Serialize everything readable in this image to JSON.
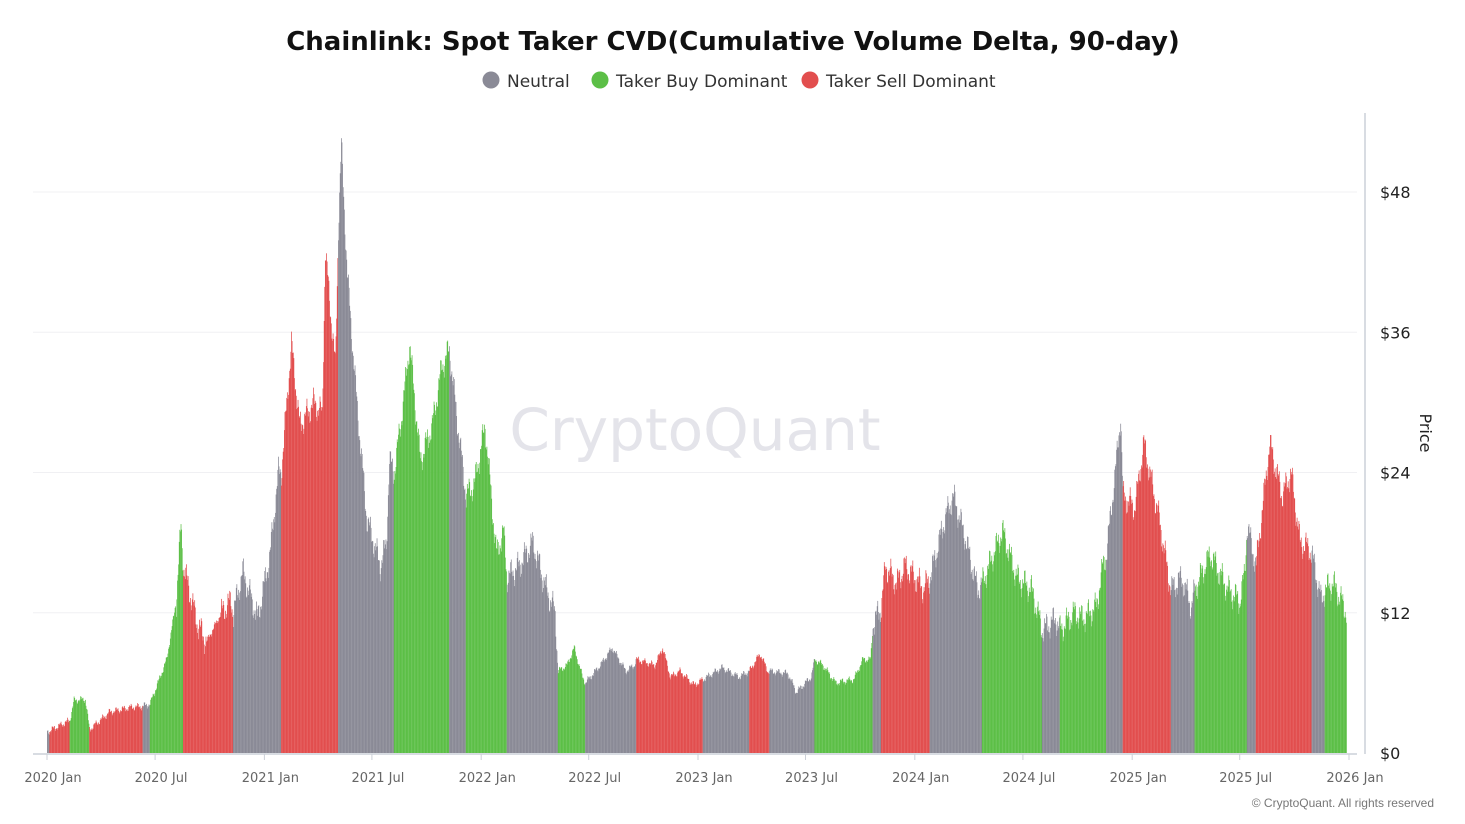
{
  "chart_data": {
    "type": "bar",
    "title": "Chainlink: Spot Taker CVD(Cumulative Volume Delta, 90-day)",
    "ylabel": "Price",
    "ylim": [
      0,
      52
    ],
    "xlim": [
      "2020-01-01",
      "2026-01-01"
    ],
    "y_ticks": [
      "$0",
      "$12",
      "$24",
      "$36",
      "$48"
    ],
    "y_tick_values": [
      0,
      12,
      24,
      36,
      48
    ],
    "x_ticks": [
      "2020 Jan",
      "2020 Jul",
      "2021 Jan",
      "2021 Jul",
      "2022 Jan",
      "2022 Jul",
      "2023 Jan",
      "2023 Jul",
      "2024 Jan",
      "2024 Jul",
      "2025 Jan",
      "2025 Jul",
      "2026 Jan"
    ],
    "x_tick_dates": [
      "2020-01-01",
      "2020-07-01",
      "2021-01-01",
      "2021-07-01",
      "2022-01-01",
      "2022-07-01",
      "2023-01-01",
      "2023-07-01",
      "2024-01-01",
      "2024-07-01",
      "2025-01-01",
      "2025-07-01",
      "2026-01-01"
    ],
    "grid": "horizontal",
    "legend_placement": "top-center",
    "legend": [
      {
        "key": "neutral",
        "label": "Neutral",
        "color": "#8a8a96"
      },
      {
        "key": "buy",
        "label": "Taker Buy Dominant",
        "color": "#5cbf47"
      },
      {
        "key": "sell",
        "label": "Taker Sell Dominant",
        "color": "#e24e4e"
      }
    ],
    "points": [
      [
        "2020-01-01",
        1.8,
        "neutral"
      ],
      [
        "2020-01-05",
        1.9,
        "sell"
      ],
      [
        "2020-02-08",
        2.8,
        "buy"
      ],
      [
        "2020-02-15",
        4.5,
        "buy"
      ],
      [
        "2020-03-05",
        4.6,
        "buy"
      ],
      [
        "2020-03-12",
        2.0,
        "sell"
      ],
      [
        "2020-04-15",
        3.5,
        "sell"
      ],
      [
        "2020-05-20",
        3.9,
        "sell"
      ],
      [
        "2020-06-10",
        4.0,
        "neutral"
      ],
      [
        "2020-06-22",
        4.2,
        "buy"
      ],
      [
        "2020-07-20",
        8,
        "buy"
      ],
      [
        "2020-08-05",
        13,
        "buy"
      ],
      [
        "2020-08-13",
        19.5,
        "buy"
      ],
      [
        "2020-08-17",
        16,
        "sell"
      ],
      [
        "2020-09-10",
        11,
        "sell"
      ],
      [
        "2020-09-25",
        9.5,
        "sell"
      ],
      [
        "2020-10-20",
        12,
        "sell"
      ],
      [
        "2020-11-05",
        13,
        "sell"
      ],
      [
        "2020-11-09",
        12,
        "neutral"
      ],
      [
        "2020-11-25",
        15.5,
        "neutral"
      ],
      [
        "2020-12-20",
        11.5,
        "neutral"
      ],
      [
        "2021-01-10",
        17,
        "neutral"
      ],
      [
        "2021-01-24",
        24,
        "neutral"
      ],
      [
        "2021-01-29",
        24,
        "sell"
      ],
      [
        "2021-02-15",
        35,
        "sell"
      ],
      [
        "2021-03-01",
        28,
        "sell"
      ],
      [
        "2021-03-25",
        30,
        "sell"
      ],
      [
        "2021-04-08",
        29,
        "sell"
      ],
      [
        "2021-04-13",
        43,
        "sell"
      ],
      [
        "2021-04-30",
        33,
        "sell"
      ],
      [
        "2021-05-05",
        45,
        "neutral"
      ],
      [
        "2021-05-10",
        52,
        "neutral"
      ],
      [
        "2021-05-20",
        41,
        "neutral"
      ],
      [
        "2021-06-05",
        30,
        "neutral"
      ],
      [
        "2021-06-22",
        20,
        "neutral"
      ],
      [
        "2021-07-15",
        16,
        "neutral"
      ],
      [
        "2021-07-25",
        18,
        "neutral"
      ],
      [
        "2021-07-30",
        25,
        "neutral"
      ],
      [
        "2021-08-07",
        24,
        "buy"
      ],
      [
        "2021-08-20",
        29,
        "buy"
      ],
      [
        "2021-09-02",
        35,
        "buy"
      ],
      [
        "2021-09-20",
        25,
        "buy"
      ],
      [
        "2021-10-10",
        28,
        "buy"
      ],
      [
        "2021-10-26",
        33,
        "buy"
      ],
      [
        "2021-11-08",
        34.5,
        "neutral"
      ],
      [
        "2021-11-22",
        28,
        "neutral"
      ],
      [
        "2021-12-06",
        22,
        "buy"
      ],
      [
        "2021-12-20",
        23,
        "buy"
      ],
      [
        "2022-01-07",
        28,
        "buy"
      ],
      [
        "2022-01-26",
        17,
        "buy"
      ],
      [
        "2022-02-07",
        19,
        "buy"
      ],
      [
        "2022-02-13",
        15,
        "neutral"
      ],
      [
        "2022-03-05",
        16,
        "neutral"
      ],
      [
        "2022-03-28",
        18,
        "neutral"
      ],
      [
        "2022-04-20",
        14,
        "neutral"
      ],
      [
        "2022-05-05",
        12,
        "neutral"
      ],
      [
        "2022-05-10",
        7,
        "buy"
      ],
      [
        "2022-05-25",
        7.5,
        "buy"
      ],
      [
        "2022-06-06",
        9,
        "buy"
      ],
      [
        "2022-06-20",
        6.5,
        "buy"
      ],
      [
        "2022-06-25",
        6,
        "neutral"
      ],
      [
        "2022-07-20",
        7.5,
        "neutral"
      ],
      [
        "2022-08-09",
        9,
        "neutral"
      ],
      [
        "2022-09-01",
        7,
        "neutral"
      ],
      [
        "2022-09-15",
        7.5,
        "neutral"
      ],
      [
        "2022-09-19",
        8,
        "sell"
      ],
      [
        "2022-10-20",
        7.5,
        "sell"
      ],
      [
        "2022-11-02",
        9,
        "sell"
      ],
      [
        "2022-11-15",
        6.5,
        "sell"
      ],
      [
        "2022-12-01",
        7,
        "sell"
      ],
      [
        "2022-12-25",
        5.8,
        "sell"
      ],
      [
        "2023-01-09",
        6.3,
        "neutral"
      ],
      [
        "2023-02-10",
        7.3,
        "neutral"
      ],
      [
        "2023-03-10",
        6.5,
        "neutral"
      ],
      [
        "2023-03-28",
        7,
        "sell"
      ],
      [
        "2023-04-15",
        8.5,
        "sell"
      ],
      [
        "2023-04-28",
        7,
        "sell"
      ],
      [
        "2023-05-01",
        7,
        "neutral"
      ],
      [
        "2023-06-01",
        6.8,
        "neutral"
      ],
      [
        "2023-06-15",
        5.2,
        "neutral"
      ],
      [
        "2023-07-10",
        6.5,
        "neutral"
      ],
      [
        "2023-07-16",
        8,
        "buy"
      ],
      [
        "2023-07-30",
        7.5,
        "buy"
      ],
      [
        "2023-08-20",
        6,
        "buy"
      ],
      [
        "2023-09-20",
        6.3,
        "buy"
      ],
      [
        "2023-10-05",
        8,
        "buy"
      ],
      [
        "2023-10-18",
        8,
        "buy"
      ],
      [
        "2023-10-22",
        11,
        "neutral"
      ],
      [
        "2023-11-05",
        12.5,
        "sell"
      ],
      [
        "2023-11-12",
        16,
        "sell"
      ],
      [
        "2023-12-01",
        14.5,
        "sell"
      ],
      [
        "2023-12-15",
        16,
        "sell"
      ],
      [
        "2024-01-01",
        15,
        "sell"
      ],
      [
        "2024-01-15",
        14,
        "sell"
      ],
      [
        "2024-01-26",
        15,
        "neutral"
      ],
      [
        "2024-02-20",
        20,
        "neutral"
      ],
      [
        "2024-03-05",
        22,
        "neutral"
      ],
      [
        "2024-03-25",
        18.5,
        "neutral"
      ],
      [
        "2024-04-15",
        14,
        "neutral"
      ],
      [
        "2024-04-23",
        14.5,
        "buy"
      ],
      [
        "2024-05-27",
        19,
        "buy"
      ],
      [
        "2024-06-20",
        15,
        "buy"
      ],
      [
        "2024-07-15",
        14,
        "buy"
      ],
      [
        "2024-08-02",
        10.5,
        "neutral"
      ],
      [
        "2024-08-25",
        11.5,
        "neutral"
      ],
      [
        "2024-09-01",
        10.5,
        "buy"
      ],
      [
        "2024-09-25",
        12,
        "buy"
      ],
      [
        "2024-10-10",
        11.5,
        "buy"
      ],
      [
        "2024-11-01",
        12.5,
        "buy"
      ],
      [
        "2024-11-12",
        16,
        "buy"
      ],
      [
        "2024-11-18",
        17,
        "neutral"
      ],
      [
        "2024-12-05",
        25,
        "neutral"
      ],
      [
        "2024-12-12",
        29,
        "neutral"
      ],
      [
        "2024-12-16",
        22,
        "sell"
      ],
      [
        "2025-01-05",
        21,
        "sell"
      ],
      [
        "2025-01-20",
        26.5,
        "sell"
      ],
      [
        "2025-02-15",
        20,
        "sell"
      ],
      [
        "2025-03-03",
        15,
        "sell"
      ],
      [
        "2025-03-07",
        14,
        "neutral"
      ],
      [
        "2025-03-25",
        15,
        "neutral"
      ],
      [
        "2025-04-10",
        12.5,
        "neutral"
      ],
      [
        "2025-04-16",
        14,
        "buy"
      ],
      [
        "2025-05-12",
        17,
        "buy"
      ],
      [
        "2025-06-10",
        14,
        "buy"
      ],
      [
        "2025-07-01",
        13,
        "buy"
      ],
      [
        "2025-07-09",
        15.5,
        "buy"
      ],
      [
        "2025-07-13",
        19.5,
        "neutral"
      ],
      [
        "2025-07-28",
        16,
        "sell"
      ],
      [
        "2025-08-20",
        26.5,
        "sell"
      ],
      [
        "2025-09-10",
        22,
        "sell"
      ],
      [
        "2025-09-25",
        24,
        "sell"
      ],
      [
        "2025-10-10",
        18,
        "sell"
      ],
      [
        "2025-10-26",
        17.5,
        "sell"
      ],
      [
        "2025-10-30",
        17,
        "neutral"
      ],
      [
        "2025-11-15",
        13,
        "neutral"
      ],
      [
        "2025-11-21",
        14,
        "buy"
      ],
      [
        "2025-12-05",
        14.5,
        "buy"
      ],
      [
        "2025-12-28",
        12,
        "buy"
      ]
    ]
  },
  "watermark": "CryptoQuant",
  "copyright": "© CryptoQuant. All rights reserved"
}
